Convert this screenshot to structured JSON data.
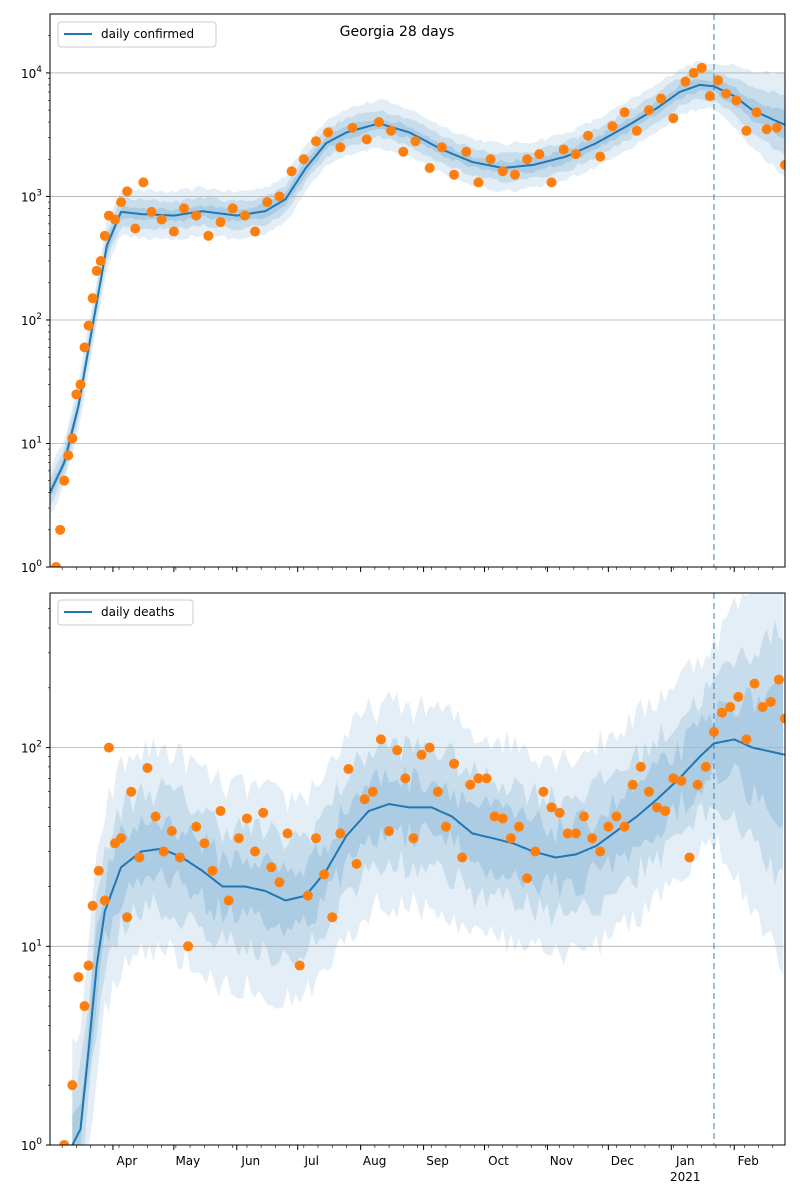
{
  "chart_data": [
    {
      "type": "line",
      "title": "Georgia 28 days",
      "legend": {
        "placement": "top-left",
        "entries": [
          "daily confirmed"
        ]
      },
      "y_scale": "log",
      "ylim": [
        1,
        30000
      ],
      "y_ticks": [
        {
          "value": 1,
          "label": "10",
          "exp": "0"
        },
        {
          "value": 10,
          "label": "10",
          "exp": "1"
        },
        {
          "value": 100,
          "label": "10",
          "exp": "2"
        },
        {
          "value": 1000,
          "label": "10",
          "exp": "3"
        },
        {
          "value": 10000,
          "label": "10",
          "exp": "4"
        }
      ],
      "grid": "y",
      "x_range": [
        "2020-03-01",
        "2021-02-26"
      ],
      "forecast_start": "2021-01-22",
      "series": [
        {
          "name": "daily confirmed",
          "color": "#1f77b4",
          "x": [
            "2020-03-01",
            "2020-03-08",
            "2020-03-15",
            "2020-03-22",
            "2020-03-29",
            "2020-04-05",
            "2020-04-15",
            "2020-05-01",
            "2020-05-15",
            "2020-06-01",
            "2020-06-15",
            "2020-06-25",
            "2020-07-05",
            "2020-07-15",
            "2020-07-25",
            "2020-08-10",
            "2020-08-25",
            "2020-09-10",
            "2020-09-25",
            "2020-10-10",
            "2020-10-25",
            "2020-11-10",
            "2020-11-25",
            "2020-12-10",
            "2020-12-25",
            "2021-01-05",
            "2021-01-15",
            "2021-01-22",
            "2021-02-01",
            "2021-02-10",
            "2021-02-20",
            "2021-02-26"
          ],
          "y": [
            4,
            7,
            20,
            90,
            400,
            750,
            720,
            700,
            760,
            700,
            760,
            950,
            1700,
            2700,
            3300,
            3900,
            3300,
            2400,
            1900,
            1700,
            1800,
            2100,
            2700,
            3700,
            5200,
            7000,
            8000,
            7800,
            6500,
            5000,
            4200,
            3800
          ]
        }
      ],
      "observed": {
        "color": "#ff7f0e",
        "x": [
          "2020-03-04",
          "2020-03-06",
          "2020-03-08",
          "2020-03-10",
          "2020-03-12",
          "2020-03-14",
          "2020-03-16",
          "2020-03-18",
          "2020-03-20",
          "2020-03-22",
          "2020-03-24",
          "2020-03-26",
          "2020-03-28",
          "2020-03-30",
          "2020-04-02",
          "2020-04-05",
          "2020-04-08",
          "2020-04-12",
          "2020-04-16",
          "2020-04-20",
          "2020-04-25",
          "2020-05-01",
          "2020-05-06",
          "2020-05-12",
          "2020-05-18",
          "2020-05-24",
          "2020-05-30",
          "2020-06-05",
          "2020-06-10",
          "2020-06-16",
          "2020-06-22",
          "2020-06-28",
          "2020-07-04",
          "2020-07-10",
          "2020-07-16",
          "2020-07-22",
          "2020-07-28",
          "2020-08-04",
          "2020-08-10",
          "2020-08-16",
          "2020-08-22",
          "2020-08-28",
          "2020-09-04",
          "2020-09-10",
          "2020-09-16",
          "2020-09-22",
          "2020-09-28",
          "2020-10-04",
          "2020-10-10",
          "2020-10-16",
          "2020-10-22",
          "2020-10-28",
          "2020-11-03",
          "2020-11-09",
          "2020-11-15",
          "2020-11-21",
          "2020-11-27",
          "2020-12-03",
          "2020-12-09",
          "2020-12-15",
          "2020-12-21",
          "2020-12-27",
          "2021-01-02",
          "2021-01-08",
          "2021-01-12",
          "2021-01-16",
          "2021-01-20",
          "2021-01-24",
          "2021-01-28",
          "2021-02-02",
          "2021-02-07",
          "2021-02-12",
          "2021-02-17",
          "2021-02-22",
          "2021-02-26"
        ],
        "y": [
          1,
          2,
          5,
          8,
          11,
          25,
          30,
          60,
          90,
          150,
          250,
          300,
          480,
          700,
          650,
          900,
          1100,
          550,
          1300,
          750,
          650,
          520,
          800,
          700,
          480,
          620,
          800,
          700,
          520,
          900,
          1000,
          1600,
          2000,
          2800,
          3300,
          2500,
          3600,
          2900,
          4000,
          3400,
          2300,
          2800,
          1700,
          2500,
          1500,
          2300,
          1300,
          2000,
          1600,
          1500,
          2000,
          2200,
          1300,
          2400,
          2200,
          3100,
          2100,
          3700,
          4800,
          3400,
          5000,
          6200,
          4300,
          8500,
          10000,
          11000,
          6500,
          8700,
          6800,
          6000,
          3400,
          4800,
          3500,
          3600,
          1800
        ]
      }
    },
    {
      "type": "line",
      "title": "",
      "legend": {
        "placement": "top-left",
        "entries": [
          "daily deaths"
        ]
      },
      "y_scale": "log",
      "ylim": [
        1,
        600
      ],
      "y_ticks": [
        {
          "value": 1,
          "label": "10",
          "exp": "0"
        },
        {
          "value": 10,
          "label": "10",
          "exp": "1"
        },
        {
          "value": 100,
          "label": "10",
          "exp": "2"
        }
      ],
      "grid": "y",
      "x_range": [
        "2020-03-01",
        "2021-02-26"
      ],
      "forecast_start": "2021-01-22",
      "x_tick_labels": [
        {
          "label": "Apr",
          "date": "2020-04-01"
        },
        {
          "label": "May",
          "date": "2020-05-01"
        },
        {
          "label": "Jun",
          "date": "2020-06-01"
        },
        {
          "label": "Jul",
          "date": "2020-07-01"
        },
        {
          "label": "Aug",
          "date": "2020-08-01"
        },
        {
          "label": "Sep",
          "date": "2020-09-01"
        },
        {
          "label": "Oct",
          "date": "2020-10-01"
        },
        {
          "label": "Nov",
          "date": "2020-11-01"
        },
        {
          "label": "Dec",
          "date": "2020-12-01"
        },
        {
          "label": "Jan",
          "date": "2021-01-01",
          "sublabel": "2021"
        },
        {
          "label": "Feb",
          "date": "2021-02-01"
        }
      ],
      "series": [
        {
          "name": "daily deaths",
          "color": "#1f77b4",
          "x": [
            "2020-03-12",
            "2020-03-16",
            "2020-03-20",
            "2020-03-24",
            "2020-03-28",
            "2020-04-05",
            "2020-04-15",
            "2020-04-25",
            "2020-05-05",
            "2020-05-15",
            "2020-05-25",
            "2020-06-05",
            "2020-06-15",
            "2020-06-25",
            "2020-07-05",
            "2020-07-15",
            "2020-07-25",
            "2020-08-05",
            "2020-08-15",
            "2020-08-25",
            "2020-09-05",
            "2020-09-15",
            "2020-09-25",
            "2020-10-05",
            "2020-10-15",
            "2020-10-25",
            "2020-11-05",
            "2020-11-15",
            "2020-11-25",
            "2020-12-05",
            "2020-12-15",
            "2020-12-25",
            "2021-01-05",
            "2021-01-15",
            "2021-01-22",
            "2021-02-01",
            "2021-02-10",
            "2021-02-20",
            "2021-02-26"
          ],
          "y": [
            1,
            1.2,
            3,
            8,
            15,
            25,
            30,
            31,
            28,
            24,
            20,
            20,
            19,
            17,
            18,
            24,
            36,
            48,
            52,
            50,
            50,
            45,
            37,
            35,
            33,
            30,
            28,
            29,
            32,
            38,
            45,
            55,
            70,
            90,
            105,
            110,
            100,
            95,
            92
          ]
        }
      ],
      "observed": {
        "color": "#ff7f0e",
        "x": [
          "2020-03-08",
          "2020-03-12",
          "2020-03-15",
          "2020-03-18",
          "2020-03-20",
          "2020-03-22",
          "2020-03-25",
          "2020-03-28",
          "2020-03-30",
          "2020-04-02",
          "2020-04-05",
          "2020-04-08",
          "2020-04-10",
          "2020-04-14",
          "2020-04-18",
          "2020-04-22",
          "2020-04-26",
          "2020-04-30",
          "2020-05-04",
          "2020-05-08",
          "2020-05-12",
          "2020-05-16",
          "2020-05-20",
          "2020-05-24",
          "2020-05-28",
          "2020-06-02",
          "2020-06-06",
          "2020-06-10",
          "2020-06-14",
          "2020-06-18",
          "2020-06-22",
          "2020-06-26",
          "2020-07-02",
          "2020-07-06",
          "2020-07-10",
          "2020-07-14",
          "2020-07-18",
          "2020-07-22",
          "2020-07-26",
          "2020-07-30",
          "2020-08-03",
          "2020-08-07",
          "2020-08-11",
          "2020-08-15",
          "2020-08-19",
          "2020-08-23",
          "2020-08-27",
          "2020-08-31",
          "2020-09-04",
          "2020-09-08",
          "2020-09-12",
          "2020-09-16",
          "2020-09-20",
          "2020-09-24",
          "2020-09-28",
          "2020-10-02",
          "2020-10-06",
          "2020-10-10",
          "2020-10-14",
          "2020-10-18",
          "2020-10-22",
          "2020-10-26",
          "2020-10-30",
          "2020-11-03",
          "2020-11-07",
          "2020-11-11",
          "2020-11-15",
          "2020-11-19",
          "2020-11-23",
          "2020-11-27",
          "2020-12-01",
          "2020-12-05",
          "2020-12-09",
          "2020-12-13",
          "2020-12-17",
          "2020-12-21",
          "2020-12-25",
          "2020-12-29",
          "2021-01-02",
          "2021-01-06",
          "2021-01-10",
          "2021-01-14",
          "2021-01-18",
          "2021-01-22",
          "2021-01-26",
          "2021-01-30",
          "2021-02-03",
          "2021-02-07",
          "2021-02-11",
          "2021-02-15",
          "2021-02-19",
          "2021-02-23",
          "2021-02-26"
        ],
        "y": [
          1,
          2,
          7,
          5,
          8,
          16,
          24,
          17,
          100,
          33,
          35,
          14,
          60,
          28,
          79,
          45,
          30,
          38,
          28,
          10,
          40,
          33,
          24,
          48,
          17,
          35,
          44,
          30,
          47,
          25,
          21,
          37,
          8,
          18,
          35,
          23,
          14,
          37,
          78,
          26,
          55,
          60,
          110,
          38,
          97,
          70,
          35,
          92,
          100,
          60,
          40,
          83,
          28,
          65,
          70,
          70,
          45,
          44,
          35,
          40,
          22,
          30,
          60,
          50,
          47,
          37,
          37,
          45,
          35,
          30,
          40,
          45,
          40,
          65,
          80,
          60,
          50,
          48,
          70,
          68,
          28,
          65,
          80,
          120,
          150,
          160,
          180,
          110,
          210,
          160,
          170,
          220,
          140
        ]
      }
    }
  ]
}
